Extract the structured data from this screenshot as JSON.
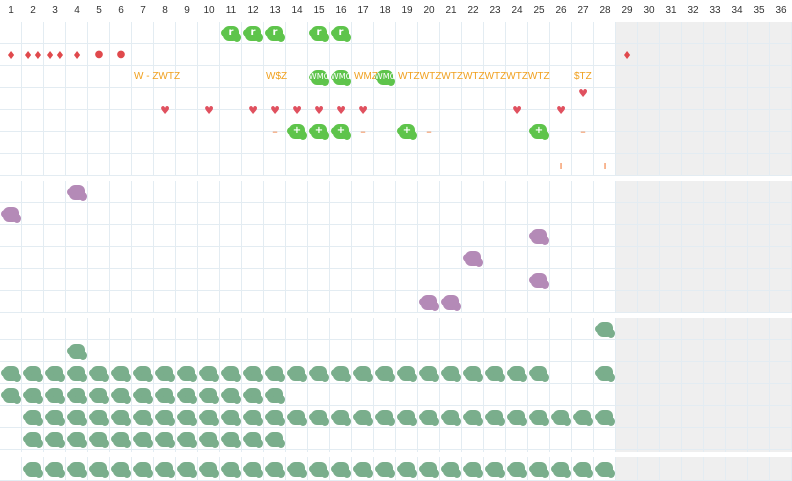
{
  "days": [
    "1",
    "2",
    "3",
    "4",
    "5",
    "6",
    "7",
    "8",
    "9",
    "10",
    "11",
    "12",
    "13",
    "14",
    "15",
    "16",
    "17",
    "18",
    "19",
    "20",
    "21",
    "22",
    "23",
    "24",
    "25",
    "26",
    "27",
    "28",
    "29",
    "30",
    "31",
    "32",
    "33",
    "34",
    "35",
    "36"
  ],
  "colors": {
    "green": "#5ec44b",
    "teal": "#7aae8c",
    "purple": "#b48ab7",
    "red": "#e0494c",
    "pink": "#e0515f",
    "orange": "#f0a01e",
    "orange_red": "#f07028",
    "grid": "#e3ecf2",
    "shade": "#efefef"
  },
  "sections": [
    {
      "name": "top-section",
      "rows": 7,
      "items": [
        {
          "row": 0,
          "col": 11,
          "kind": "blob",
          "color": "green",
          "label": "r"
        },
        {
          "row": 0,
          "col": 12,
          "kind": "blob",
          "color": "green",
          "label": "r"
        },
        {
          "row": 0,
          "col": 13,
          "kind": "blob",
          "color": "green",
          "label": "r"
        },
        {
          "row": 0,
          "col": 15,
          "kind": "blob",
          "color": "green",
          "label": "r"
        },
        {
          "row": 0,
          "col": 16,
          "kind": "blob",
          "color": "green",
          "label": "r"
        },
        {
          "row": 1,
          "col": 1,
          "kind": "glyph",
          "glyph": "♦",
          "color": "red"
        },
        {
          "row": 1,
          "col": 2,
          "kind": "glyph",
          "glyph": "♦♦",
          "color": "red"
        },
        {
          "row": 1,
          "col": 3,
          "kind": "glyph",
          "glyph": "♦♦",
          "color": "red"
        },
        {
          "row": 1,
          "col": 4,
          "kind": "glyph",
          "glyph": "♦",
          "color": "red"
        },
        {
          "row": 1,
          "col": 5,
          "kind": "glyph",
          "glyph": "●",
          "color": "red"
        },
        {
          "row": 1,
          "col": 6,
          "kind": "glyph",
          "glyph": "●",
          "color": "red"
        },
        {
          "row": 1,
          "col": 29,
          "kind": "glyph",
          "glyph": "♦",
          "color": "red"
        },
        {
          "row": 2,
          "col": 7,
          "kind": "text",
          "text": "W - ZWTZ"
        },
        {
          "row": 2,
          "col": 13,
          "kind": "text",
          "text": "W$Z"
        },
        {
          "row": 2,
          "col": 15,
          "kind": "blob",
          "color": "green",
          "label": "WMC"
        },
        {
          "row": 2,
          "col": 16,
          "kind": "blob",
          "color": "green",
          "label": "WMC"
        },
        {
          "row": 2,
          "col": 17,
          "kind": "text",
          "text": "WMZ"
        },
        {
          "row": 2,
          "col": 18,
          "kind": "blob",
          "color": "green",
          "label": "WMC"
        },
        {
          "row": 2,
          "col": 19,
          "kind": "text",
          "text": "WTZWTZWTZWTZWTZWTZWTZ"
        },
        {
          "row": 2,
          "col": 27,
          "kind": "text",
          "text": "$TZ"
        },
        {
          "row": 3,
          "col": 27,
          "kind": "glyph",
          "glyph": "♥",
          "color": "pink",
          "dy": -6
        },
        {
          "row": 4,
          "col": 8,
          "kind": "glyph",
          "glyph": "♥",
          "color": "pink",
          "dy": -11
        },
        {
          "row": 4,
          "col": 10,
          "kind": "glyph",
          "glyph": "♥",
          "color": "pink",
          "dy": -11
        },
        {
          "row": 4,
          "col": 12,
          "kind": "glyph",
          "glyph": "♥",
          "color": "pink",
          "dy": -11
        },
        {
          "row": 4,
          "col": 13,
          "kind": "glyph",
          "glyph": "♥",
          "color": "pink",
          "dy": -11
        },
        {
          "row": 4,
          "col": 14,
          "kind": "glyph",
          "glyph": "♥",
          "color": "pink",
          "dy": -11
        },
        {
          "row": 4,
          "col": 15,
          "kind": "glyph",
          "glyph": "♥",
          "color": "pink",
          "dy": -11
        },
        {
          "row": 4,
          "col": 16,
          "kind": "glyph",
          "glyph": "♥",
          "color": "pink",
          "dy": -11
        },
        {
          "row": 4,
          "col": 17,
          "kind": "glyph",
          "glyph": "♥",
          "color": "pink",
          "dy": -11
        },
        {
          "row": 4,
          "col": 24,
          "kind": "glyph",
          "glyph": "♥",
          "color": "pink",
          "dy": -11
        },
        {
          "row": 4,
          "col": 26,
          "kind": "glyph",
          "glyph": "♥",
          "color": "pink",
          "dy": -11
        },
        {
          "row": 4,
          "col": 13,
          "kind": "glyph",
          "glyph": "–",
          "color": "orange_red",
          "dy": 10
        },
        {
          "row": 4,
          "col": 14,
          "kind": "blob",
          "color": "green",
          "label": "+",
          "dy": 10
        },
        {
          "row": 4,
          "col": 15,
          "kind": "blob",
          "color": "green",
          "label": "+",
          "dy": 10
        },
        {
          "row": 4,
          "col": 16,
          "kind": "blob",
          "color": "green",
          "label": "+",
          "dy": 10
        },
        {
          "row": 4,
          "col": 17,
          "kind": "glyph",
          "glyph": "–",
          "color": "orange_red",
          "dy": 10
        },
        {
          "row": 4,
          "col": 19,
          "kind": "blob",
          "color": "green",
          "label": "+",
          "dy": 10
        },
        {
          "row": 4,
          "col": 20,
          "kind": "glyph",
          "glyph": "–",
          "color": "orange_red",
          "dy": 10
        },
        {
          "row": 4,
          "col": 25,
          "kind": "blob",
          "color": "green",
          "label": "+",
          "dy": 10
        },
        {
          "row": 4,
          "col": 27,
          "kind": "glyph",
          "glyph": "–",
          "color": "orange_red",
          "dy": 10
        },
        {
          "row": 6,
          "col": 26,
          "kind": "glyph",
          "glyph": "ı",
          "color": "orange_red",
          "dy": 0
        },
        {
          "row": 6,
          "col": 28,
          "kind": "glyph",
          "glyph": "ı",
          "color": "orange_red",
          "dy": 0
        }
      ]
    },
    {
      "name": "purple-section",
      "rows": 6,
      "items": [
        {
          "row": 0,
          "col": 4,
          "kind": "blob",
          "color": "purple"
        },
        {
          "row": 1,
          "col": 1,
          "kind": "blob",
          "color": "purple"
        },
        {
          "row": 2,
          "col": 25,
          "kind": "blob",
          "color": "purple"
        },
        {
          "row": 3,
          "col": 22,
          "kind": "blob",
          "color": "purple"
        },
        {
          "row": 4,
          "col": 25,
          "kind": "blob",
          "color": "purple"
        },
        {
          "row": 5,
          "col": 20,
          "kind": "blob",
          "color": "purple"
        },
        {
          "row": 5,
          "col": 21,
          "kind": "blob",
          "color": "purple"
        }
      ]
    },
    {
      "name": "teal-section",
      "rows": 6,
      "fills": [
        {
          "row": 2,
          "from": 1,
          "to": 25,
          "color": "teal"
        },
        {
          "row": 3,
          "from": 1,
          "to": 13,
          "color": "teal"
        },
        {
          "row": 4,
          "from": 2,
          "to": 28,
          "color": "teal"
        },
        {
          "row": 5,
          "from": 2,
          "to": 13,
          "color": "teal"
        }
      ],
      "items": [
        {
          "row": 0,
          "col": 28,
          "kind": "blob",
          "color": "teal"
        },
        {
          "row": 1,
          "col": 4,
          "kind": "blob",
          "color": "teal"
        },
        {
          "row": 2,
          "col": 28,
          "kind": "blob",
          "color": "teal"
        }
      ]
    },
    {
      "name": "bottom-section",
      "rows": 1,
      "fills": [
        {
          "row": 0,
          "from": 2,
          "to": 28,
          "color": "teal"
        }
      ],
      "items": []
    }
  ]
}
